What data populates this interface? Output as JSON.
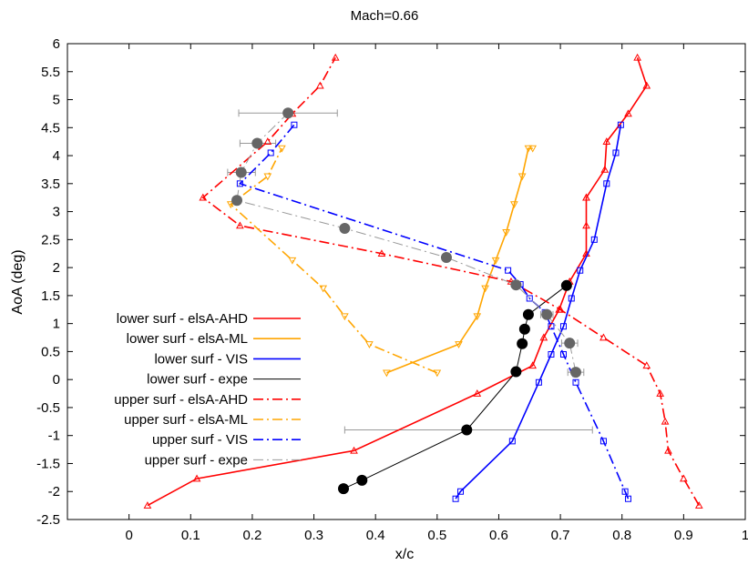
{
  "chart_data": {
    "type": "line",
    "title": "Mach=0.66",
    "xlabel": "x/c",
    "ylabel": "AoA (deg)",
    "xlim": [
      -0.1,
      1.0
    ],
    "ylim": [
      -2.5,
      6.0
    ],
    "xticks": [
      0,
      0.1,
      0.2,
      0.3,
      0.4,
      0.5,
      0.6,
      0.7,
      0.8,
      0.9,
      1
    ],
    "xtick_labels": [
      "0",
      "0.1",
      "0.2",
      "0.3",
      "0.4",
      "0.5",
      "0.6",
      "0.7",
      "0.8",
      "0.9",
      "1"
    ],
    "yticks": [
      -2.5,
      -2,
      -1.5,
      -1,
      -0.5,
      0,
      0.5,
      1,
      1.5,
      2,
      2.5,
      3,
      3.5,
      4,
      4.5,
      5,
      5.5,
      6
    ],
    "ytick_labels": [
      "-2.5",
      "-2",
      "-1.5",
      "-1",
      "-0.5",
      "0",
      "0.5",
      "1",
      "1.5",
      "2",
      "2.5",
      "3",
      "3.5",
      "4",
      "4.5",
      "5",
      "5.5",
      "6"
    ],
    "grid": false,
    "legend_position": "bottom-left",
    "series": [
      {
        "name": "lower surf - elsA-AHD",
        "color": "#ff0000",
        "dash": "solid",
        "marker": "triangle-up",
        "x": [
          0.03,
          0.11,
          0.365,
          0.565,
          0.655,
          0.673,
          0.698,
          0.715,
          0.742,
          0.742,
          0.742,
          0.742,
          0.772,
          0.775,
          0.81,
          0.84,
          0.825
        ],
        "y": [
          -2.25,
          -1.77,
          -1.27,
          -0.25,
          0.25,
          0.75,
          1.25,
          1.75,
          2.25,
          2.75,
          3.25,
          3.25,
          3.75,
          4.25,
          4.75,
          5.25,
          5.75
        ]
      },
      {
        "name": "lower surf - elsA-ML",
        "color": "#ffa500",
        "dash": "solid",
        "marker": "triangle-down",
        "x": [
          0.418,
          0.535,
          0.565,
          0.578,
          0.595,
          0.612,
          0.625,
          0.638,
          0.648,
          0.655
        ],
        "y": [
          0.12,
          0.63,
          1.13,
          1.63,
          2.13,
          2.63,
          3.13,
          3.63,
          4.13,
          4.13
        ]
      },
      {
        "name": "lower surf - VIS",
        "color": "#0000ff",
        "dash": "solid",
        "marker": "square",
        "x": [
          0.53,
          0.538,
          0.622,
          0.665,
          0.685,
          0.705,
          0.718,
          0.732,
          0.755,
          0.775,
          0.79,
          0.798
        ],
        "y": [
          -2.13,
          -2.0,
          -1.1,
          -0.05,
          0.45,
          0.95,
          1.45,
          1.95,
          2.5,
          3.5,
          4.05,
          4.55
        ]
      },
      {
        "name": "lower surf - expe",
        "color": "#000000",
        "dash": "solid",
        "marker": "circle",
        "x": [
          0.348,
          0.378,
          0.548,
          0.628,
          0.638,
          0.642,
          0.648,
          0.71
        ],
        "y": [
          -1.95,
          -1.8,
          -0.9,
          0.14,
          0.64,
          0.9,
          1.16,
          1.68
        ]
      },
      {
        "name": "upper surf - elsA-AHD",
        "color": "#ff0000",
        "dash": "dashdot",
        "marker": "triangle-up",
        "x": [
          0.925,
          0.9,
          0.875,
          0.87,
          0.862,
          0.84,
          0.77,
          0.7,
          0.62,
          0.41,
          0.18,
          0.12,
          0.225,
          0.265,
          0.31,
          0.335
        ],
        "y": [
          -2.25,
          -1.77,
          -1.27,
          -0.75,
          -0.25,
          0.25,
          0.75,
          1.25,
          1.75,
          2.25,
          2.75,
          3.25,
          4.25,
          4.75,
          5.25,
          5.75
        ]
      },
      {
        "name": "upper surf - elsA-ML",
        "color": "#ffa500",
        "dash": "dashdot",
        "marker": "triangle-down",
        "x": [
          0.5,
          0.39,
          0.35,
          0.315,
          0.265,
          0.165,
          0.225,
          0.248
        ],
        "y": [
          0.12,
          0.63,
          1.13,
          1.63,
          2.13,
          3.13,
          3.63,
          4.13
        ]
      },
      {
        "name": "upper surf - VIS",
        "color": "#0000ff",
        "dash": "dashdot",
        "marker": "square",
        "x": [
          0.81,
          0.805,
          0.77,
          0.725,
          0.705,
          0.685,
          0.675,
          0.65,
          0.635,
          0.615,
          0.18,
          0.23,
          0.268
        ],
        "y": [
          -2.13,
          -2.0,
          -1.1,
          -0.05,
          0.45,
          0.95,
          1.2,
          1.45,
          1.7,
          1.95,
          3.5,
          4.05,
          4.55
        ]
      },
      {
        "name": "upper surf - expe",
        "color": "#999999",
        "dash": "dashdot",
        "marker": "circle-gray",
        "x": [
          0.725,
          0.715,
          0.678,
          0.628,
          0.515,
          0.35,
          0.175,
          0.182,
          0.208,
          0.258
        ],
        "y": [
          0.13,
          0.65,
          1.16,
          1.69,
          2.18,
          2.7,
          3.2,
          3.7,
          4.22,
          4.76
        ]
      }
    ],
    "error_bars": [
      {
        "series": "lower surf - expe",
        "x": 0.548,
        "y": -0.9,
        "xmin": 0.35,
        "xmax": 0.752,
        "color": "#999999"
      },
      {
        "series": "upper surf - expe",
        "x": 0.725,
        "y": 0.13,
        "xmin": 0.712,
        "xmax": 0.738,
        "color": "#999999"
      },
      {
        "series": "upper surf - expe",
        "x": 0.715,
        "y": 0.65,
        "xmin": 0.702,
        "xmax": 0.728,
        "color": "#999999"
      },
      {
        "series": "upper surf - expe",
        "x": 0.678,
        "y": 1.16,
        "xmin": 0.668,
        "xmax": 0.688,
        "color": "#999999"
      },
      {
        "series": "upper surf - expe",
        "x": 0.182,
        "y": 3.7,
        "xmin": 0.16,
        "xmax": 0.205,
        "color": "#999999"
      },
      {
        "series": "upper surf - expe",
        "x": 0.208,
        "y": 4.22,
        "xmin": 0.18,
        "xmax": 0.238,
        "color": "#999999"
      },
      {
        "series": "upper surf - expe",
        "x": 0.258,
        "y": 4.76,
        "xmin": 0.178,
        "xmax": 0.338,
        "color": "#999999"
      }
    ]
  }
}
